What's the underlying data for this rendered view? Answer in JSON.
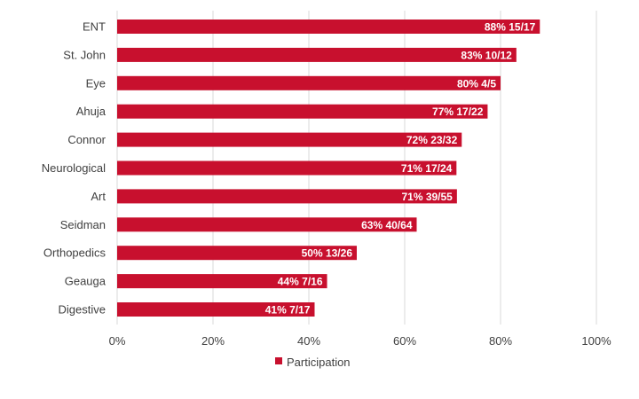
{
  "chart_data": {
    "type": "bar",
    "orientation": "horizontal",
    "categories": [
      "ENT",
      "St. John",
      "Eye",
      "Ahuja",
      "Connor",
      "Neurological",
      "Art",
      "Seidman",
      "Orthopedics",
      "Geauga",
      "Digestive"
    ],
    "series": [
      {
        "name": "Participation",
        "color": "#C8102E",
        "values": [
          88.2,
          83.3,
          80.0,
          77.3,
          71.9,
          70.8,
          70.9,
          62.5,
          50.0,
          43.8,
          41.2
        ],
        "data_labels": [
          "88% 15/17",
          "83% 10/12",
          "80% 4/5",
          "77% 17/22",
          "72% 23/32",
          "71% 17/24",
          "71% 39/55",
          "63% 40/64",
          "50% 13/26",
          "44% 7/16",
          "41% 7/17"
        ]
      }
    ],
    "xlim": [
      0,
      100
    ],
    "xticks": [
      "0%",
      "20%",
      "40%",
      "60%",
      "80%",
      "100%"
    ],
    "grid": true,
    "legend": "bottom"
  }
}
